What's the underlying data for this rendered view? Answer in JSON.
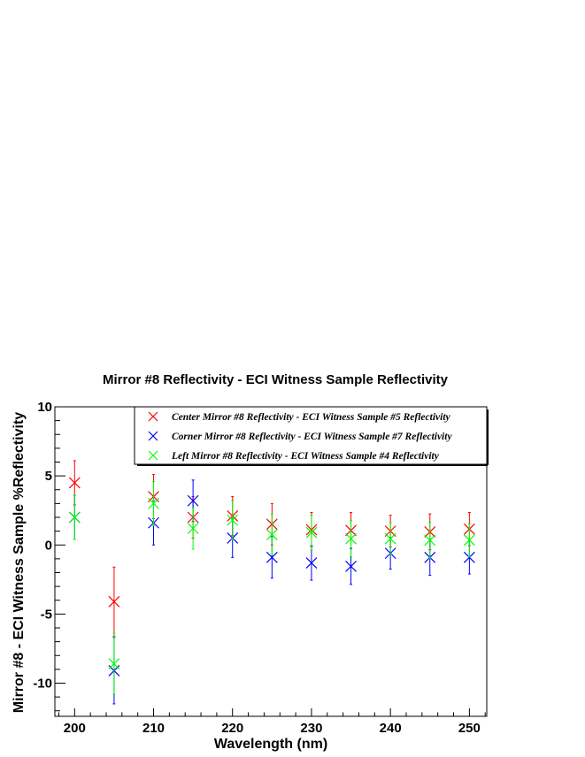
{
  "chart_data": {
    "type": "scatter",
    "title": "Mirror #8 Reflectivity - ECI Witness Sample Reflectivity",
    "xlabel": "Wavelength (nm)",
    "ylabel": "Mirror #8 - ECI Witness Sample %Reflectivity",
    "xlim": [
      197.5,
      252.2
    ],
    "ylim": [
      -12.4,
      10
    ],
    "x_ticks": [
      200,
      210,
      220,
      230,
      240,
      250
    ],
    "y_ticks": [
      -10,
      -5,
      0,
      5,
      10
    ],
    "x_tick_labels": [
      "200",
      "210",
      "220",
      "230",
      "240",
      "250"
    ],
    "y_tick_labels": [
      "-10",
      "-5",
      "0",
      "5",
      "10"
    ],
    "legend_placement": "top-right",
    "marker": "x",
    "series": [
      {
        "name": "Center Mirror #8 Reflectivity - ECI Witness Sample #5 Reflectivity",
        "color": "#ff0000",
        "x": [
          200,
          205,
          210,
          215,
          220,
          225,
          230,
          235,
          240,
          245,
          250
        ],
        "y": [
          4.5,
          -4.1,
          3.5,
          2.0,
          2.1,
          1.5,
          1.1,
          1.05,
          1.0,
          0.95,
          1.15
        ],
        "err": [
          1.6,
          2.5,
          1.6,
          1.5,
          1.4,
          1.5,
          1.25,
          1.3,
          1.15,
          1.3,
          1.2
        ]
      },
      {
        "name": "Corner Mirror #8 Reflectivity - ECI Witness Sample #7 Reflectivity",
        "color": "#0000ff",
        "x": [
          200,
          205,
          210,
          215,
          220,
          225,
          230,
          235,
          240,
          245,
          250
        ],
        "y": [
          2.0,
          -9.1,
          1.6,
          3.2,
          0.5,
          -0.9,
          -1.3,
          -1.55,
          -0.6,
          -0.9,
          -0.9
        ],
        "err": [
          1.6,
          2.4,
          1.6,
          1.5,
          1.4,
          1.5,
          1.25,
          1.3,
          1.15,
          1.3,
          1.2
        ]
      },
      {
        "name": "Left Mirror #8 Reflectivity - ECI Witness Sample #4 Reflectivity",
        "color": "#00ff00",
        "x": [
          200,
          205,
          210,
          215,
          220,
          225,
          230,
          235,
          240,
          245,
          250
        ],
        "y": [
          2.0,
          -8.6,
          3.0,
          1.2,
          1.8,
          0.75,
          0.9,
          0.45,
          0.45,
          0.35,
          0.35
        ],
        "err": [
          1.6,
          2.2,
          1.6,
          1.5,
          1.4,
          1.5,
          1.25,
          1.3,
          1.15,
          1.3,
          1.2
        ]
      }
    ]
  }
}
